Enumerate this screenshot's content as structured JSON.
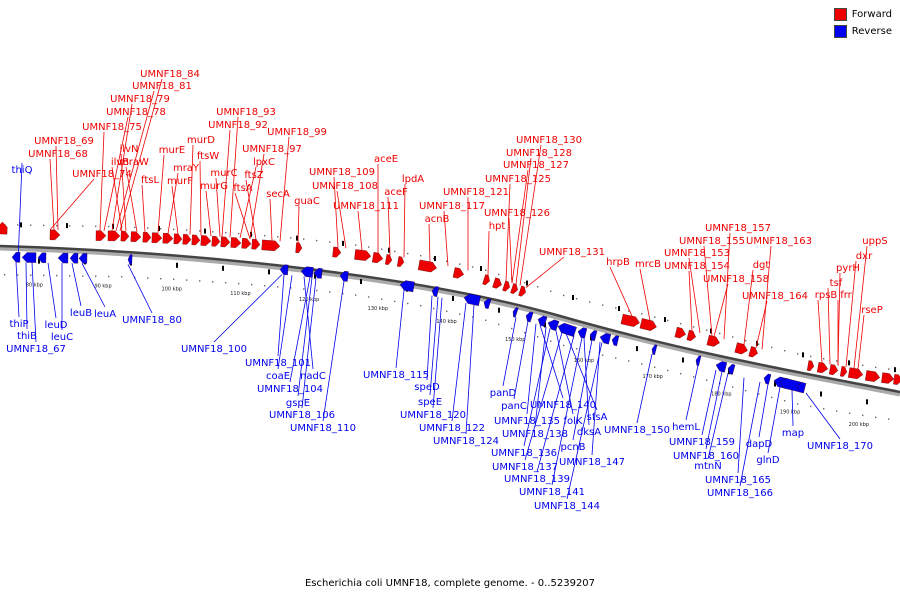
{
  "title": "Escherichia coli UMNF18, complete genome. - 0..5239207",
  "legend": [
    {
      "label": "Forward",
      "color": "#ee0000"
    },
    {
      "label": "Reverse",
      "color": "#0000ee"
    }
  ],
  "colors": {
    "forward": "#ee0000",
    "reverse": "#0000ee",
    "backbone": "#555555"
  },
  "scale": {
    "start_kbp": 75,
    "end_kbp": 206
  },
  "ticks": [
    "80 kbp",
    "90 kbp",
    "100 kbp",
    "110 kbp",
    "120 kbp",
    "130 kbp",
    "140 kbp",
    "150 kbp",
    "160 kbp",
    "170 kbp",
    "180 kbp",
    "190 kbp",
    "200 kbp"
  ],
  "forward_labels": [
    "UMNF18_84",
    "UMNF18_81",
    "UMNF18_79",
    "UMNF18_78",
    "UMNF18_75",
    "UMNF18_69",
    "UMNF18_68",
    "UMNF18_74",
    "ilvN",
    "ilvB",
    "mraW",
    "ftsL",
    "murE",
    "mraY",
    "murF",
    "murD",
    "ftsW",
    "murG",
    "murC",
    "UMNF18_93",
    "UMNF18_92",
    "UMNF18_97",
    "lpxC",
    "ftsZ",
    "ftsA",
    "UMNF18_99",
    "secA",
    "guaC",
    "UMNF18_109",
    "UMNF18_108",
    "UMNF18_111",
    "aceE",
    "aceF",
    "lpdA",
    "acnB",
    "UMNF18_117",
    "UMNF18_121",
    "hpt",
    "UMNF18_130",
    "UMNF18_128",
    "UMNF18_127",
    "UMNF18_125",
    "UMNF18_126",
    "UMNF18_131",
    "hrpB",
    "mrcB",
    "UMNF18_157",
    "UMNF18_155",
    "UMNF18_153",
    "UMNF18_154",
    "dgt",
    "UMNF18_158",
    "UMNF18_163",
    "UMNF18_164",
    "uppS",
    "dxr",
    "pyrH",
    "tsf",
    "rpsB",
    "frr",
    "rseP"
  ],
  "reverse_labels": [
    "thiQ",
    "thiP",
    "thiB",
    "UMNF18_67",
    "leuD",
    "leuC",
    "leuB",
    "leuA",
    "UMNF18_80",
    "UMNF18_100",
    "UMNF18_101",
    "coaE",
    "nadC",
    "UMNF18_104",
    "gspE",
    "UMNF18_106",
    "UMNF18_110",
    "UMNF18_115",
    "speD",
    "speE",
    "UMNF18_120",
    "UMNF18_122",
    "UMNF18_124",
    "panD",
    "panC",
    "UMNF18_140",
    "UMNF18_135",
    "folK",
    "sfsA",
    "UMNF18_138",
    "dksA",
    "pcnB",
    "UMNF18_136",
    "UMNF18_137",
    "UMNF18_147",
    "UMNF18_139",
    "UMNF18_141",
    "UMNF18_144",
    "UMNF18_150",
    "hemL",
    "UMNF18_159",
    "UMNF18_160",
    "mtnN",
    "UMNF18_165",
    "dapD",
    "glnD",
    "UMNF18_166",
    "map",
    "UMNF18_170"
  ]
}
